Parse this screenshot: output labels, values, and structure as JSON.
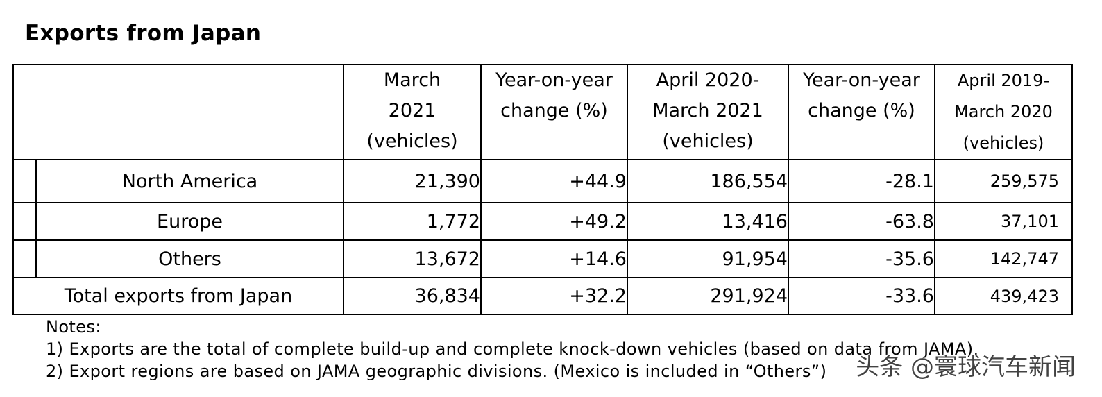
{
  "title": "Exports from Japan",
  "table": {
    "headers": [
      {
        "lines": [
          "March",
          "2021",
          "(vehicles)"
        ]
      },
      {
        "lines": [
          "Year-on-year",
          "change (%)"
        ]
      },
      {
        "lines": [
          "April 2020-",
          "March 2021",
          "(vehicles)"
        ]
      },
      {
        "lines": [
          "Year-on-year",
          "change (%)"
        ]
      },
      {
        "lines": [
          "April 2019-",
          "March 2020",
          "(vehicles)"
        ]
      }
    ],
    "rows": [
      {
        "label": "North America",
        "values": [
          "21,390",
          "+44.9",
          "186,554",
          "-28.1",
          "259,575"
        ]
      },
      {
        "label": "Europe",
        "values": [
          "1,772",
          "+49.2",
          "13,416",
          "-63.8",
          "37,101"
        ]
      },
      {
        "label": "Others",
        "values": [
          "13,672",
          "+14.6",
          "91,954",
          "-35.6",
          "142,747"
        ]
      }
    ],
    "total": {
      "label": "Total exports from Japan",
      "values": [
        "36,834",
        "+32.2",
        "291,924",
        "-33.6",
        "439,423"
      ]
    }
  },
  "notes": {
    "heading": "Notes:",
    "items": [
      "1) Exports are the total of complete build-up and complete knock-down vehicles (based on data from JAMA).",
      "2) Export regions are based on JAMA geographic divisions. (Mexico is included in “Others”)"
    ]
  },
  "watermark": "头条 @寰球汽车新闻"
}
